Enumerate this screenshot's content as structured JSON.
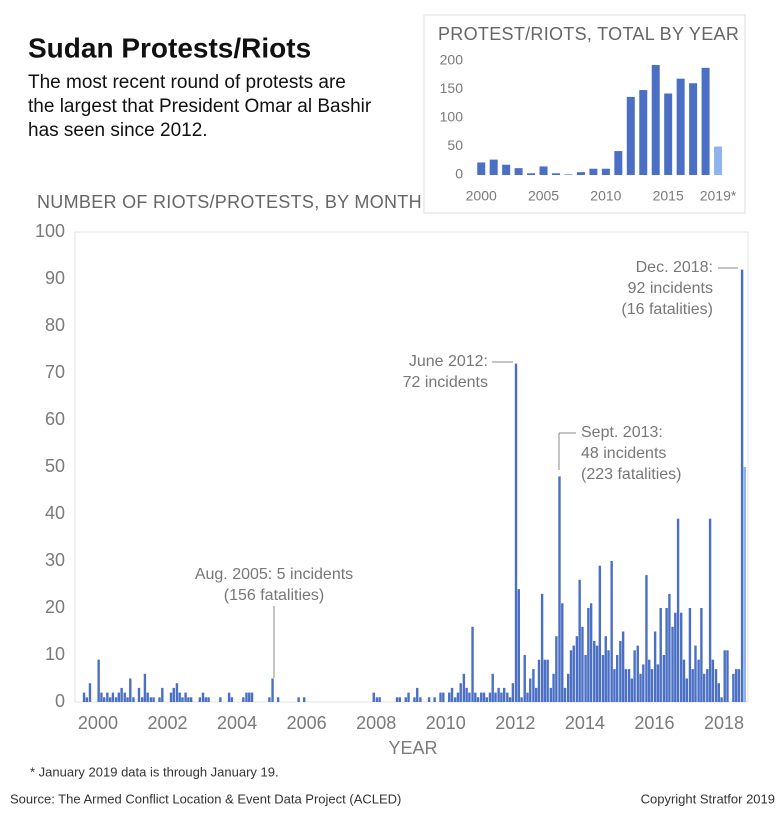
{
  "header": {
    "title": "Sudan Protests/Riots",
    "subtitle": [
      "The most recent round of protests are",
      "the largest that President Omar al Bashir",
      "has seen since 2012."
    ]
  },
  "chart_data": [
    {
      "type": "bar",
      "title": "NUMBER OF RIOTS/PROTESTS, BY MONTH",
      "xlabel": "YEAR",
      "color": "#4a6fc4",
      "last_color": "#8fb3ee",
      "xlim": [
        1999.34,
        2018.69
      ],
      "ylim": [
        0,
        100
      ],
      "xticks": [
        2000,
        2002,
        2004,
        2006,
        2008,
        2010,
        2012,
        2014,
        2016,
        2018
      ],
      "yticks": [
        0,
        10,
        20,
        30,
        40,
        50,
        60,
        70,
        80,
        90,
        100
      ],
      "x": [
        1999.6,
        1999.68,
        1999.77,
        1999.85,
        1999.93,
        2000.02,
        2000.1,
        2000.18,
        2000.27,
        2000.35,
        2000.43,
        2000.52,
        2000.6,
        2000.68,
        2000.77,
        2000.85,
        2000.93,
        2001.02,
        2001.1,
        2001.18,
        2001.27,
        2001.35,
        2001.43,
        2001.52,
        2001.6,
        2001.68,
        2001.77,
        2001.85,
        2001.93,
        2002.02,
        2002.1,
        2002.18,
        2002.27,
        2002.35,
        2002.43,
        2002.52,
        2002.6,
        2002.68,
        2002.77,
        2002.85,
        2002.93,
        2003.02,
        2003.1,
        2003.18,
        2003.27,
        2003.35,
        2003.43,
        2003.52,
        2003.6,
        2003.68,
        2003.77,
        2003.85,
        2003.93,
        2004.02,
        2004.1,
        2004.18,
        2004.27,
        2004.35,
        2004.43,
        2004.52,
        2004.6,
        2004.68,
        2004.77,
        2004.85,
        2004.93,
        2005.02,
        2005.1,
        2005.18,
        2005.27,
        2005.35,
        2005.43,
        2005.52,
        2005.6,
        2005.68,
        2005.77,
        2005.85,
        2005.93,
        2006.02,
        2006.1,
        2006.18,
        2006.27,
        2006.35,
        2006.43,
        2006.52,
        2006.6,
        2006.68,
        2006.77,
        2006.85,
        2006.93,
        2007.02,
        2007.1,
        2007.18,
        2007.27,
        2007.35,
        2007.43,
        2007.52,
        2007.6,
        2007.68,
        2007.77,
        2007.85,
        2007.93,
        2008.02,
        2008.1,
        2008.18,
        2008.27,
        2008.35,
        2008.43,
        2008.52,
        2008.6,
        2008.68,
        2008.77,
        2008.85,
        2008.93,
        2009.02,
        2009.1,
        2009.18,
        2009.27,
        2009.35,
        2009.43,
        2009.52,
        2009.6,
        2009.68,
        2009.77,
        2009.85,
        2009.93,
        2010.02,
        2010.1,
        2010.18,
        2010.27,
        2010.35,
        2010.43,
        2010.52,
        2010.6,
        2010.68,
        2010.77,
        2010.85,
        2010.93,
        2011.02,
        2011.1,
        2011.18,
        2011.27,
        2011.35,
        2011.43,
        2011.52,
        2011.6,
        2011.68,
        2011.77,
        2011.85,
        2011.93,
        2012.02,
        2012.1,
        2012.18,
        2012.27,
        2012.35,
        2012.43,
        2012.52,
        2012.6,
        2012.68,
        2012.77,
        2012.85,
        2012.93,
        2013.02,
        2013.1,
        2013.18,
        2013.27,
        2013.35,
        2013.43,
        2013.52,
        2013.6,
        2013.68,
        2013.77,
        2013.85,
        2013.93,
        2014.02,
        2014.1,
        2014.18,
        2014.27,
        2014.35,
        2014.43,
        2014.52,
        2014.6,
        2014.68,
        2014.77,
        2014.85,
        2014.93,
        2015.02,
        2015.1,
        2015.18,
        2015.27,
        2015.35,
        2015.43,
        2015.52,
        2015.6,
        2015.68,
        2015.77,
        2015.85,
        2015.93,
        2016.02,
        2016.1,
        2016.18,
        2016.27,
        2016.35,
        2016.43,
        2016.52,
        2016.6,
        2016.68,
        2016.77,
        2016.85,
        2016.93,
        2017.02,
        2017.1,
        2017.18,
        2017.27,
        2017.35,
        2017.43,
        2017.52,
        2017.6,
        2017.68,
        2017.77,
        2017.85,
        2017.93,
        2018.02,
        2018.1,
        2018.18,
        2018.27,
        2018.35,
        2018.43,
        2018.52,
        2018.6
      ],
      "values": [
        2,
        1,
        4,
        0,
        0,
        9,
        2,
        1,
        2,
        1,
        2,
        1,
        2,
        3,
        2,
        1,
        5,
        1,
        0,
        3,
        1,
        6,
        2,
        1,
        1,
        0,
        1,
        3,
        0,
        0,
        2,
        3,
        4,
        2,
        1,
        2,
        1,
        1,
        0,
        0,
        1,
        2,
        1,
        1,
        0,
        0,
        0,
        1,
        0,
        0,
        2,
        1,
        0,
        0,
        0,
        1,
        2,
        2,
        2,
        0,
        0,
        0,
        0,
        0,
        1,
        5,
        0,
        1,
        0,
        0,
        0,
        0,
        0,
        0,
        1,
        0,
        1,
        0,
        0,
        0,
        0,
        0,
        0,
        0,
        0,
        0,
        0,
        0,
        0,
        0,
        0,
        0,
        0,
        0,
        0,
        0,
        0,
        0,
        0,
        0,
        2,
        1,
        1,
        0,
        0,
        0,
        0,
        0,
        1,
        1,
        0,
        1,
        2,
        0,
        1,
        3,
        1,
        0,
        0,
        1,
        0,
        1,
        0,
        2,
        2,
        0,
        2,
        3,
        1,
        2,
        4,
        6,
        3,
        2,
        16,
        2,
        1,
        2,
        2,
        1,
        2,
        6,
        2,
        3,
        2,
        3,
        2,
        1,
        4,
        72,
        24,
        1,
        10,
        2,
        5,
        7,
        3,
        9,
        23,
        9,
        9,
        3,
        6,
        14,
        48,
        21,
        3,
        6,
        11,
        12,
        14,
        26,
        16,
        10,
        20,
        21,
        13,
        12,
        29,
        10,
        14,
        11,
        30,
        7,
        10,
        13,
        15,
        7,
        7,
        5,
        11,
        12,
        6,
        8,
        27,
        9,
        7,
        15,
        8,
        20,
        10,
        20,
        23,
        16,
        19,
        39,
        19,
        9,
        5,
        20,
        7,
        12,
        9,
        20,
        6,
        7,
        39,
        9,
        7,
        4,
        1,
        11,
        11,
        0,
        6,
        7,
        7,
        92,
        50
      ],
      "annotations": [
        {
          "text": [
            "Aug. 2005: 5 incidents",
            "(156 fatalities)"
          ]
        },
        {
          "text": [
            "June 2012:",
            "72 incidents"
          ]
        },
        {
          "text": [
            "Sept. 2013:",
            "48 incidents",
            "(223 fatalities)"
          ]
        },
        {
          "text": [
            "Dec. 2018:",
            "92 incidents",
            "(16 fatalities)"
          ]
        }
      ]
    },
    {
      "type": "bar",
      "title": "PROTEST/RIOTS, TOTAL BY YEAR",
      "color": "#4a6fc4",
      "last_color": "#8fb3ee",
      "xlim": [
        1999.1,
        2020.2
      ],
      "ylim": [
        0,
        200
      ],
      "xticks": [
        2000,
        2005,
        2010,
        2015,
        {
          "value": 2019,
          "label": "2019*"
        }
      ],
      "yticks": [
        0,
        50,
        100,
        150,
        200
      ],
      "x": [
        2000,
        2001,
        2002,
        2003,
        2004,
        2005,
        2006,
        2007,
        2008,
        2009,
        2010,
        2011,
        2012,
        2013,
        2014,
        2015,
        2016,
        2017,
        2018,
        2019
      ],
      "values": [
        22,
        27,
        18,
        12,
        3,
        15,
        3,
        1,
        5,
        11,
        11,
        42,
        137,
        149,
        193,
        143,
        169,
        161,
        188,
        50
      ]
    }
  ],
  "footer": {
    "note": "* January 2019 data is through January 19.",
    "source": "Source: The Armed Conflict Location & Event Data Project (ACLED)",
    "copyright": "Copyright Stratfor 2019"
  }
}
